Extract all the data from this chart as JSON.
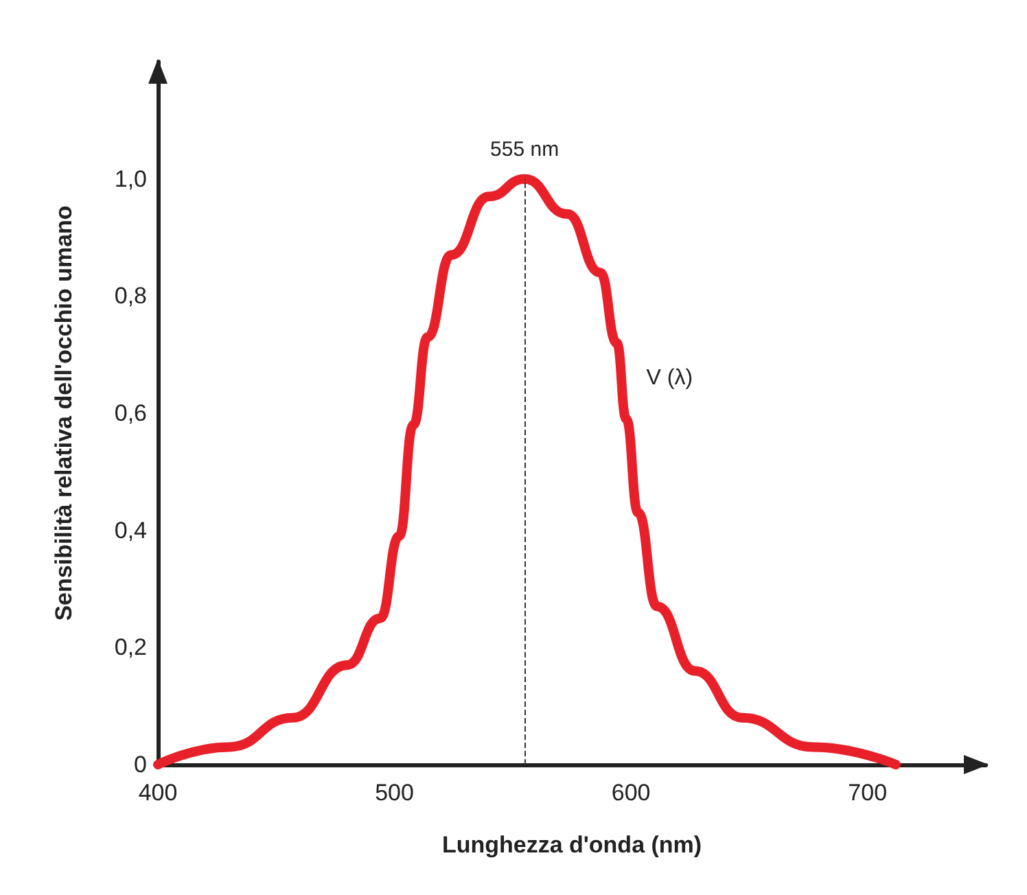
{
  "chart_data": {
    "type": "line",
    "xlabel": "Lunghezza d'onda (nm)",
    "ylabel": "Sensibilità relativa dell'occhio umano",
    "series": [
      {
        "color": "#e8202a",
        "x": [
          400,
          430,
          457,
          480,
          494,
          502,
          508,
          514,
          524,
          540,
          555,
          573,
          587,
          594,
          598,
          603,
          611,
          627,
          647,
          677,
          712
        ],
        "values": [
          0,
          0.03,
          0.08,
          0.17,
          0.25,
          0.39,
          0.58,
          0.73,
          0.87,
          0.97,
          1.0,
          0.94,
          0.84,
          0.72,
          0.59,
          0.43,
          0.27,
          0.16,
          0.08,
          0.03,
          0
        ]
      }
    ],
    "xlim": [
      400,
      750
    ],
    "ylim": [
      0,
      1.2
    ],
    "xticks": [
      400,
      500,
      600,
      700
    ],
    "yticks": [
      0,
      {
        "value": 0.2,
        "label": "0,2"
      },
      {
        "value": 0.4,
        "label": "0,4"
      },
      {
        "value": 0.6,
        "label": "0,6"
      },
      {
        "value": 0.8,
        "label": "0,8"
      },
      {
        "value": 1.0,
        "label": "1,0"
      }
    ],
    "ref_lines": [
      {
        "axis": "x",
        "value": 555,
        "label": "555 nm",
        "line_style": "dashed"
      }
    ],
    "annotations": [
      "V (λ)"
    ],
    "grid": false,
    "marker": "none",
    "line_style": "solid"
  }
}
